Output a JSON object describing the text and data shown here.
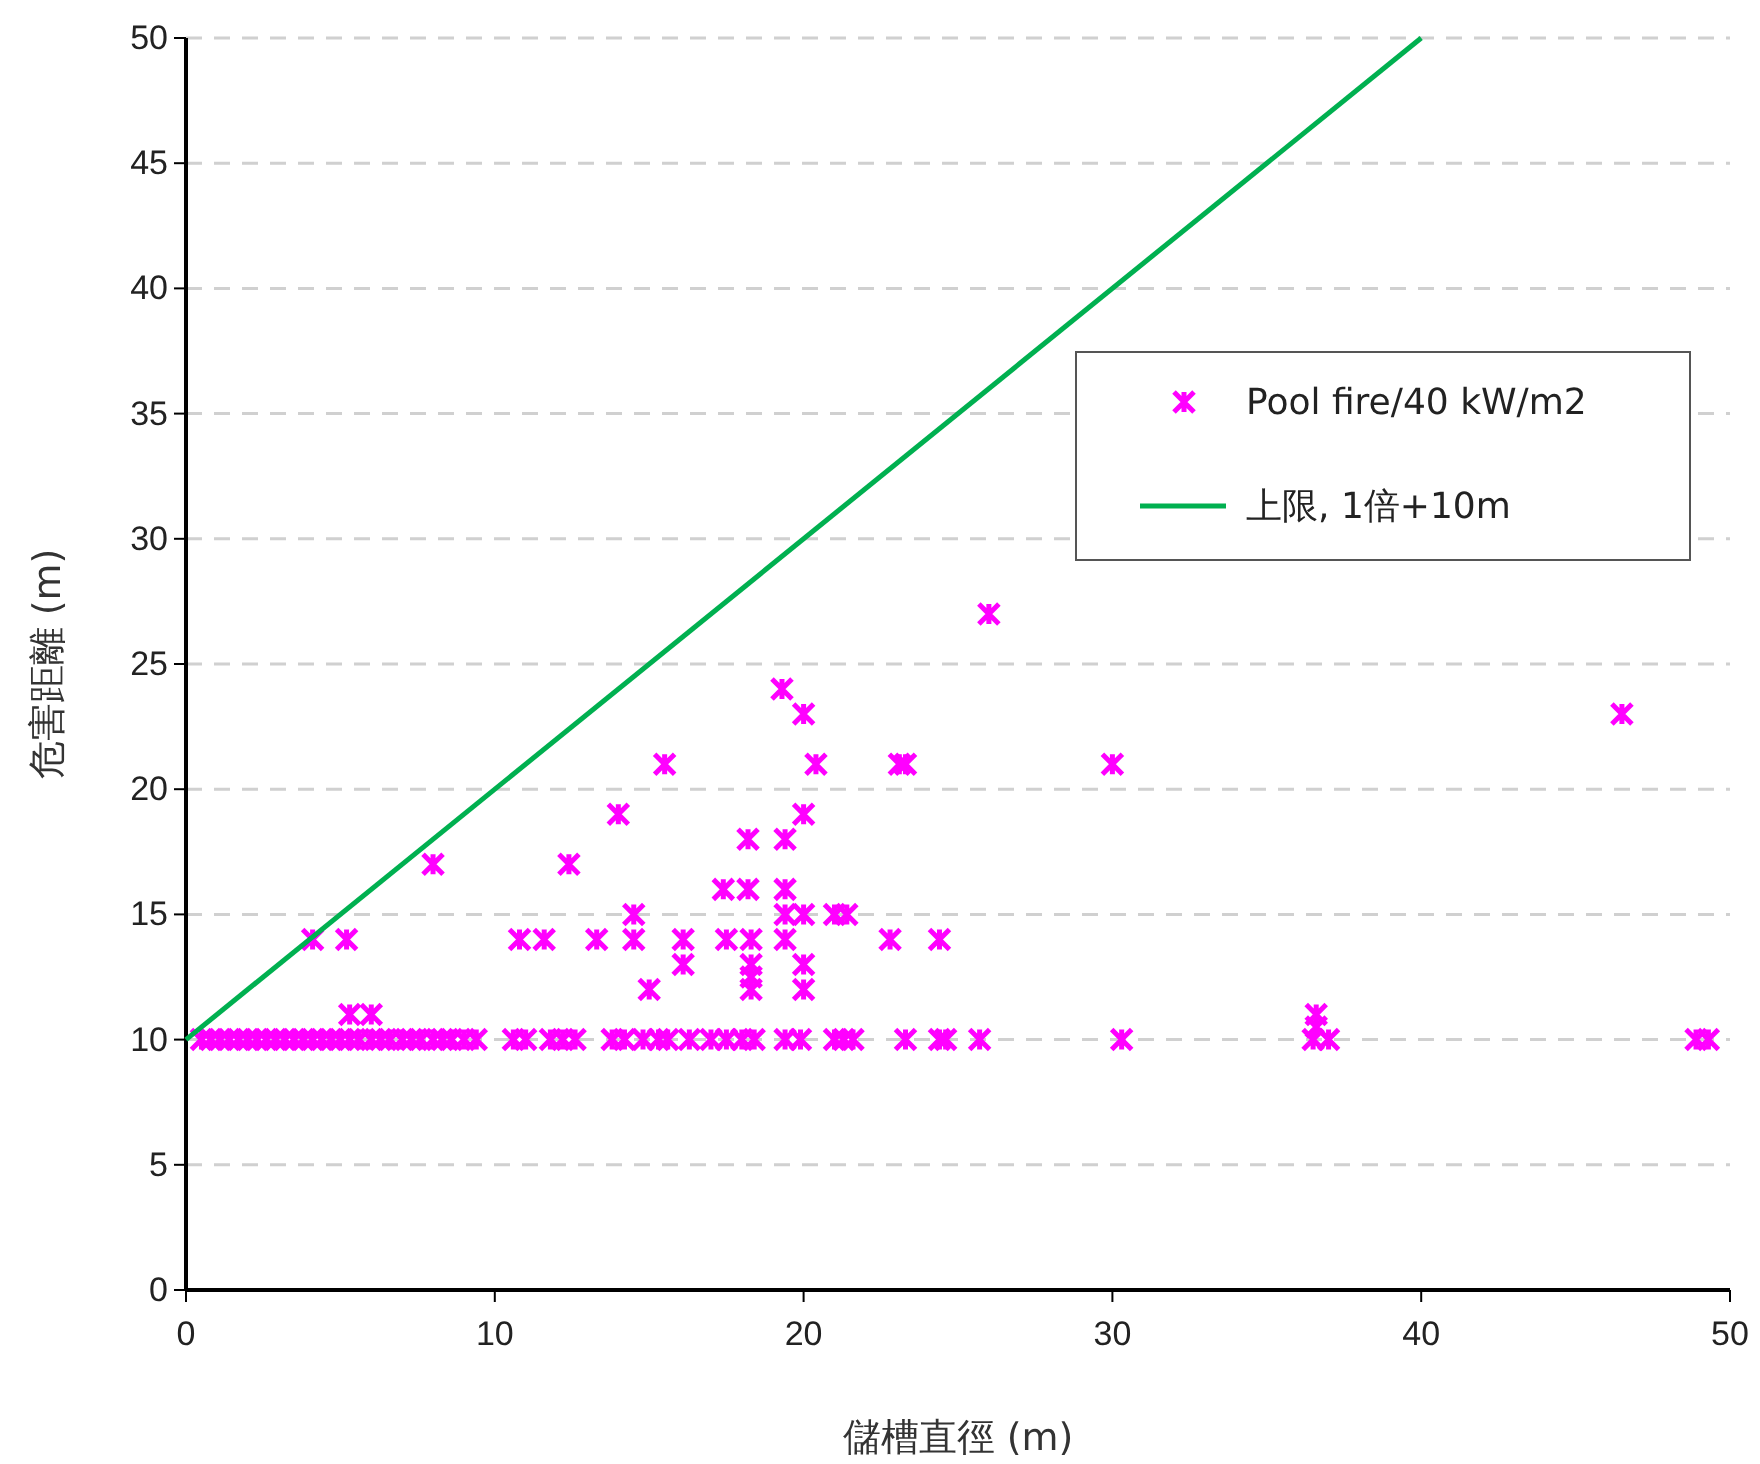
{
  "chart_data": {
    "type": "scatter",
    "xlabel": "儲槽直徑 (m)",
    "ylabel": "危害距離 (m)",
    "xlim": [
      0,
      50
    ],
    "xticks": [
      0,
      10,
      20,
      30,
      40,
      50
    ],
    "ylim": [
      0,
      50
    ],
    "yticks": [
      0,
      5,
      10,
      15,
      20,
      25,
      30,
      35,
      40,
      45,
      50
    ],
    "grid": "y",
    "legend": "right",
    "marker": "cross",
    "series": [
      {
        "name": "Pool fire/40 kW/m2",
        "color": "#ff00ff",
        "x": [
          4.1,
          5.2,
          5.3,
          6.0,
          8.0,
          10.8,
          11.6,
          12.4,
          13.3,
          14.0,
          14.5,
          14.5,
          15.0,
          15.5,
          16.1,
          16.1,
          17.4,
          17.5,
          18.2,
          18.2,
          18.3,
          18.3,
          18.3,
          18.3,
          19.3,
          19.4,
          19.4,
          19.4,
          19.4,
          20.0,
          20.0,
          20.0,
          20.0,
          20.0,
          20.4,
          21.0,
          21.4,
          23.1,
          23.3,
          22.8,
          24.4,
          26.0,
          30.0,
          36.6,
          36.6,
          46.5,
          0.5,
          0.8,
          1.1,
          1.4,
          1.7,
          2.0,
          2.3,
          2.6,
          2.9,
          3.2,
          3.5,
          3.8,
          4.1,
          4.4,
          4.7,
          5.0,
          5.3,
          5.6,
          6.0,
          6.3,
          6.6,
          7.0,
          7.3,
          7.6,
          8.0,
          8.3,
          8.6,
          9.0,
          9.4,
          10.6,
          11.0,
          11.8,
          12.2,
          12.6,
          13.8,
          14.2,
          14.8,
          15.3,
          15.6,
          16.3,
          17.0,
          17.5,
          18.0,
          18.4,
          19.4,
          19.9,
          21.0,
          21.3,
          21.6,
          23.3,
          24.4,
          24.6,
          25.7,
          30.3,
          36.5,
          37.0,
          48.9,
          49.3
        ],
        "values": [
          14,
          14,
          11,
          11,
          17,
          14,
          14,
          17,
          14,
          19,
          15,
          14,
          12,
          21,
          14,
          13,
          16,
          14,
          18,
          16,
          14,
          13,
          12.5,
          12,
          24,
          18,
          16,
          15,
          14,
          23,
          19,
          15,
          13,
          12,
          21,
          15,
          15,
          21,
          21,
          14,
          14,
          27,
          21,
          11,
          10.5,
          23,
          10,
          10,
          10,
          10,
          10,
          10,
          10,
          10,
          10,
          10,
          10,
          10,
          10,
          10,
          10,
          10,
          10,
          10,
          10,
          10,
          10,
          10,
          10,
          10,
          10,
          10,
          10,
          10,
          10,
          10,
          10,
          10,
          10,
          10,
          10,
          10,
          10,
          10,
          10,
          10,
          10,
          10,
          10,
          10,
          10,
          10,
          10,
          10,
          10,
          10,
          10,
          10,
          10,
          10,
          10,
          10,
          10,
          10
        ]
      },
      {
        "name": "上限, 1倍+10m",
        "type": "line",
        "color": "#00b050",
        "marker": "none",
        "line_style": "solid",
        "x": [
          0,
          40
        ],
        "values": [
          10,
          50
        ]
      }
    ]
  }
}
